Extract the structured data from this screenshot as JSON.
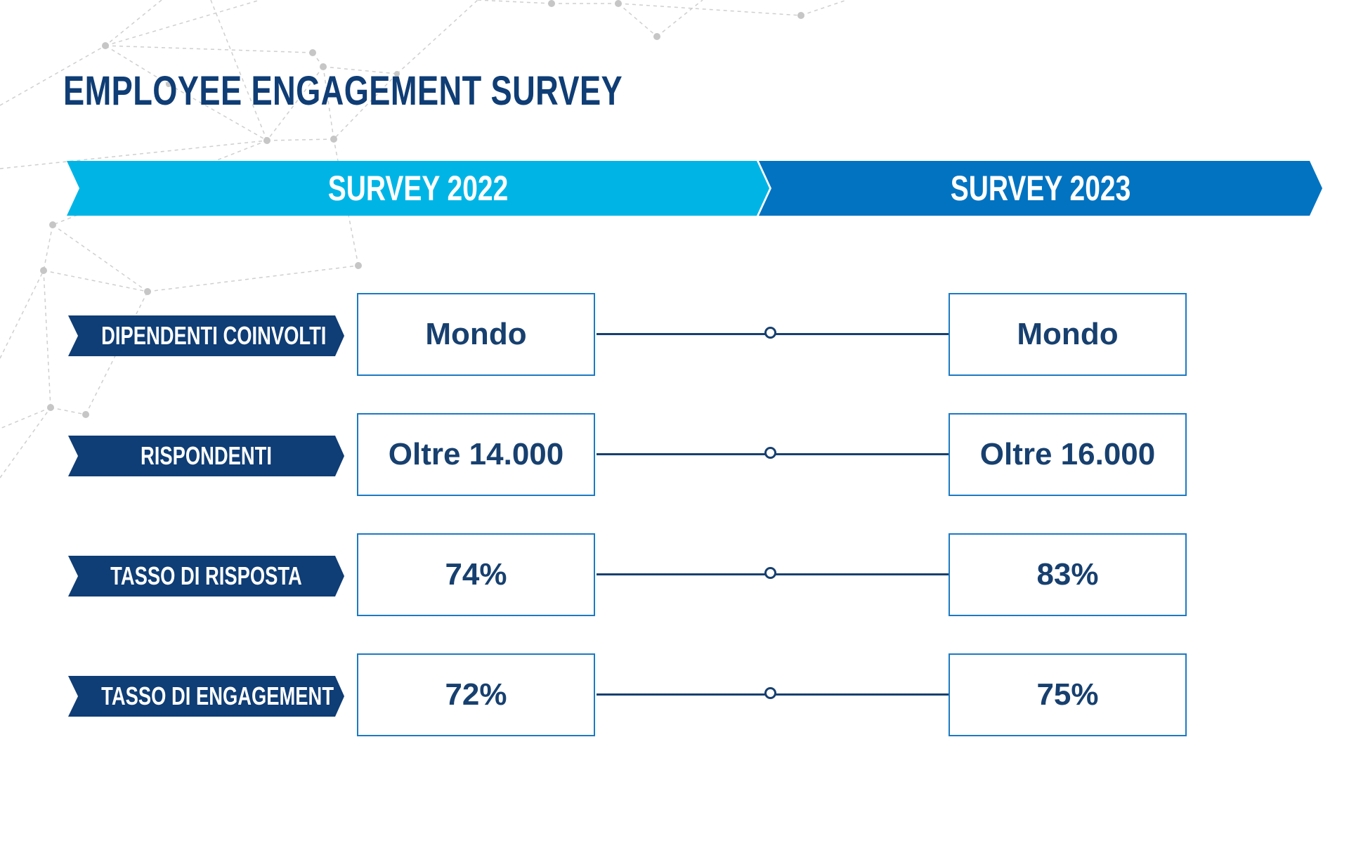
{
  "title": "EMPLOYEE ENGAGEMENT SURVEY",
  "headers": {
    "survey_2022": "SURVEY 2022",
    "survey_2023": "SURVEY 2023"
  },
  "rows": [
    {
      "label": "DIPENDENTI COINVOLTI",
      "value_2022": "Mondo",
      "value_2023": "Mondo"
    },
    {
      "label": "RISPONDENTI",
      "value_2022": "Oltre 14.000",
      "value_2023": "Oltre 16.000"
    },
    {
      "label": "TASSO DI RISPOSTA",
      "value_2022": "74%",
      "value_2023": "83%"
    },
    {
      "label": "TASSO DI ENGAGEMENT",
      "value_2022": "72%",
      "value_2023": "75%"
    }
  ],
  "colors": {
    "title": "#0f3d75",
    "banner_2022": "#00b5e6",
    "banner_2023": "#0173c1",
    "label_bg": "#0f3d75",
    "box_border": "#1c7ac3",
    "value_text": "#17406f"
  }
}
